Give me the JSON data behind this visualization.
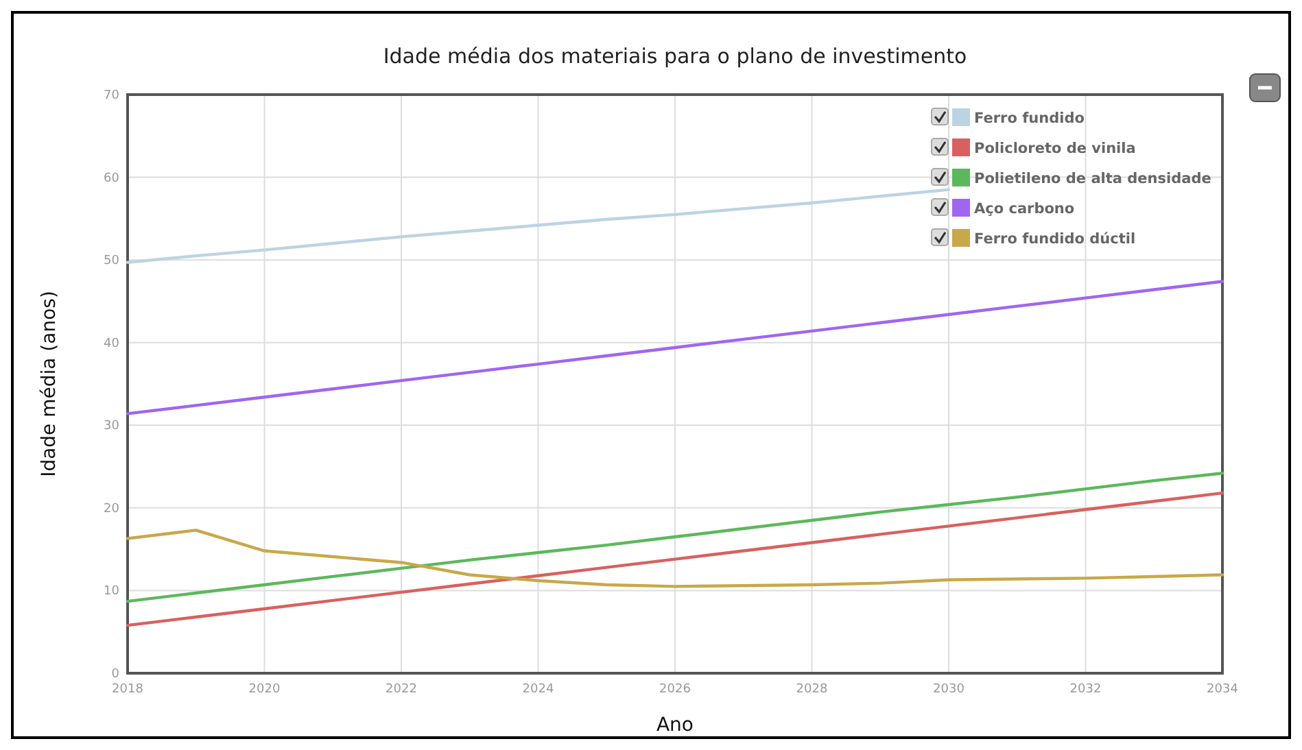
{
  "chart_data": {
    "type": "line",
    "title": "Idade média dos materiais para o plano de investimento",
    "xlabel": "Ano",
    "ylabel": "Idade média (anos)",
    "x": [
      2018,
      2019,
      2020,
      2021,
      2022,
      2023,
      2024,
      2025,
      2026,
      2027,
      2028,
      2029,
      2030,
      2031,
      2032,
      2033,
      2034
    ],
    "xlim": [
      2018,
      2034
    ],
    "xticks": [
      2018,
      2020,
      2022,
      2024,
      2026,
      2028,
      2030,
      2032,
      2034
    ],
    "ylim": [
      0,
      70
    ],
    "yticks": [
      0,
      10,
      20,
      30,
      40,
      50,
      60,
      70
    ],
    "grid": true,
    "legend": "top right",
    "marker": "none",
    "line_style": "solid",
    "series": [
      {
        "name": "Ferro fundido",
        "color": "#bcd3e3",
        "values": [
          49.7,
          50.5,
          51.2,
          52.0,
          52.8,
          53.5,
          54.2,
          54.9,
          55.5,
          56.2,
          56.9,
          57.7,
          58.5,
          null,
          null,
          null,
          null
        ]
      },
      {
        "name": "Policloreto de vinila",
        "color": "#d9605f",
        "values": [
          5.8,
          6.8,
          7.8,
          8.8,
          9.8,
          10.8,
          11.8,
          12.8,
          13.8,
          14.8,
          15.8,
          16.8,
          17.8,
          18.8,
          19.8,
          20.8,
          21.8
        ]
      },
      {
        "name": "Polietileno de alta densidade",
        "color": "#5cb85c",
        "values": [
          8.7,
          9.7,
          10.7,
          11.7,
          12.7,
          13.7,
          14.6,
          15.5,
          16.5,
          17.5,
          18.5,
          19.5,
          20.4,
          21.3,
          22.3,
          23.3,
          24.2
        ]
      },
      {
        "name": "Aço carbono",
        "color": "#a066f0",
        "values": [
          31.4,
          32.4,
          33.4,
          34.4,
          35.4,
          36.4,
          37.4,
          38.4,
          39.4,
          40.4,
          41.4,
          42.4,
          43.4,
          44.4,
          45.4,
          46.4,
          47.4
        ]
      },
      {
        "name": "Ferro fundido dúctil",
        "color": "#c8a84a",
        "values": [
          16.3,
          17.3,
          14.8,
          14.1,
          13.4,
          11.9,
          11.2,
          10.7,
          10.5,
          10.6,
          10.7,
          10.9,
          11.3,
          11.4,
          11.5,
          11.7,
          11.9
        ]
      }
    ]
  }
}
